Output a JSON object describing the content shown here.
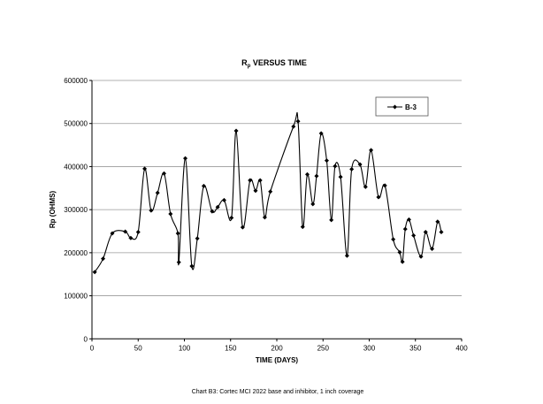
{
  "chart_data": {
    "type": "line",
    "title": {
      "main": "R",
      "subscript": "p",
      "rest": " VERSUS TIME"
    },
    "xlabel": "TIME (DAYS)",
    "ylabel": "Rp (OHMS)",
    "caption": "Chart B3: Cortec MCI 2022 base and inhibitor, 1 inch coverage",
    "xlim": [
      0,
      400
    ],
    "ylim": [
      0,
      600000
    ],
    "xticks": [
      "0",
      "50",
      "100",
      "150",
      "200",
      "250",
      "300",
      "350",
      "400"
    ],
    "yticks": [
      "0",
      "100000",
      "200000",
      "300000",
      "400000",
      "500000",
      "600000"
    ],
    "grid": "horizontal",
    "legend_position": "top-right",
    "series": [
      {
        "name": "B-3",
        "color": "#000000",
        "marker": "diamond",
        "points": [
          [
            3,
            155000
          ],
          [
            12,
            186000
          ],
          [
            22,
            245000
          ],
          [
            36,
            249000
          ],
          [
            42,
            234000
          ],
          [
            50,
            248000
          ],
          [
            57,
            395000
          ],
          [
            64,
            298000
          ],
          [
            71,
            339000
          ],
          [
            78,
            384000
          ],
          [
            85,
            290000
          ],
          [
            93,
            245000
          ],
          [
            94,
            178000
          ],
          [
            101,
            419000
          ],
          [
            108,
            169000
          ],
          [
            114,
            233000
          ],
          [
            121,
            355000
          ],
          [
            130,
            296000
          ],
          [
            136,
            306000
          ],
          [
            143,
            322000
          ],
          [
            151,
            281000
          ],
          [
            156,
            483000
          ],
          [
            163,
            259000
          ],
          [
            171,
            368000
          ],
          [
            177,
            344000
          ],
          [
            182,
            368000
          ],
          [
            187,
            282000
          ],
          [
            193,
            342000
          ],
          [
            218,
            493000
          ],
          [
            223,
            505000
          ],
          [
            228,
            260000
          ],
          [
            233,
            382000
          ],
          [
            239,
            313000
          ],
          [
            243,
            378000
          ],
          [
            248,
            477000
          ],
          [
            254,
            414000
          ],
          [
            259,
            276000
          ],
          [
            263,
            401000
          ],
          [
            269,
            376000
          ],
          [
            276,
            193000
          ],
          [
            281,
            394000
          ],
          [
            290,
            405000
          ],
          [
            296,
            353000
          ],
          [
            302,
            438000
          ],
          [
            310,
            329000
          ],
          [
            317,
            356000
          ],
          [
            326,
            231000
          ],
          [
            333,
            201000
          ],
          [
            336,
            179000
          ],
          [
            339,
            255000
          ],
          [
            343,
            277000
          ],
          [
            348,
            240000
          ],
          [
            356,
            191000
          ],
          [
            361,
            248000
          ],
          [
            368,
            209000
          ],
          [
            374,
            272000
          ],
          [
            378,
            248000
          ]
        ]
      }
    ]
  }
}
